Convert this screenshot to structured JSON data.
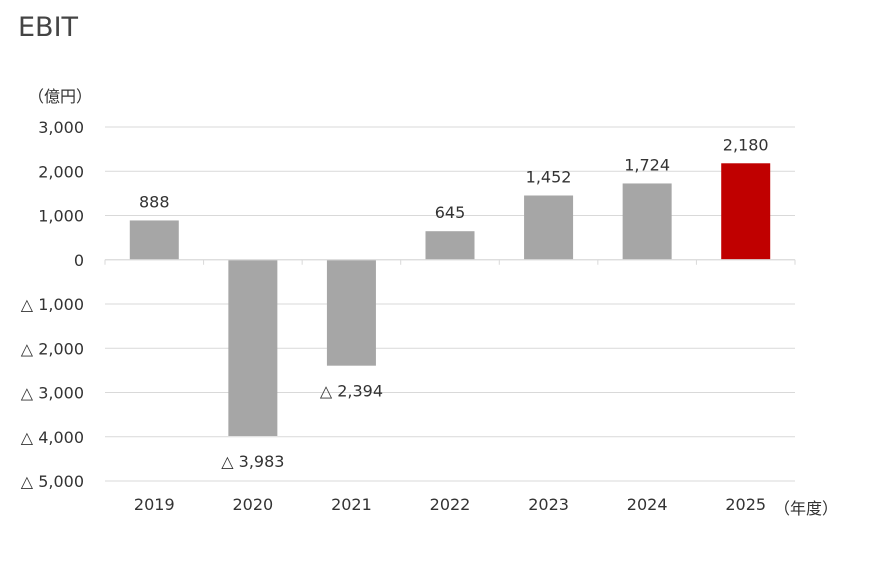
{
  "chart_data": {
    "type": "bar",
    "title": "EBIT",
    "ylabel": "（億円）",
    "xlabel": "（年度）",
    "categories": [
      "2019",
      "2020",
      "2021",
      "2022",
      "2023",
      "2024",
      "2025"
    ],
    "values": [
      888,
      -3983,
      -2394,
      645,
      1452,
      1724,
      2180
    ],
    "data_labels": [
      "888",
      "△ 3,983",
      "△ 2,394",
      "645",
      "1,452",
      "1,724",
      "2,180"
    ],
    "ylim": [
      -5000,
      3000
    ],
    "yticks": [
      3000,
      2000,
      1000,
      0,
      -1000,
      -2000,
      -3000,
      -4000,
      -5000
    ],
    "ytick_labels": [
      "3,000",
      "2,000",
      "1,000",
      "0",
      "△ 1,000",
      "△ 2,000",
      "△ 3,000",
      "△ 4,000",
      "△ 5,000"
    ],
    "grid": true,
    "legend": "none",
    "colors": {
      "default": "#a6a6a6",
      "highlight": "#c00000",
      "grid": "#d9d9d9"
    },
    "highlight_category": "2025"
  }
}
